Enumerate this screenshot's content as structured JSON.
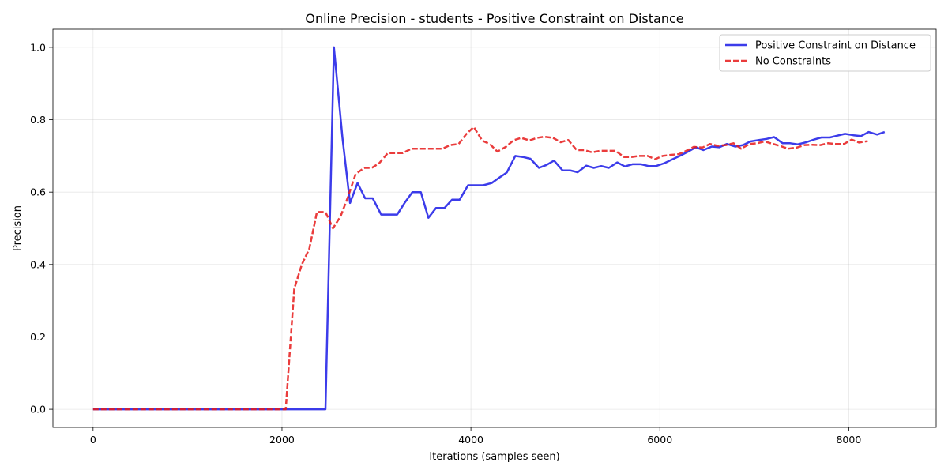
{
  "chart_data": {
    "type": "line",
    "title": "Online Precision - students - Positive Constraint on Distance",
    "xlabel": "Iterations (samples seen)",
    "ylabel": "Precision",
    "xlim": [
      -425,
      8925
    ],
    "ylim": [
      -0.05,
      1.05
    ],
    "xticks": [
      0,
      2000,
      4000,
      6000,
      8000
    ],
    "xtick_labels": [
      "0",
      "2000",
      "4000",
      "6000",
      "8000"
    ],
    "yticks": [
      0.0,
      0.2,
      0.4,
      0.6,
      0.8,
      1.0
    ],
    "ytick_labels": [
      "0.0",
      "0.2",
      "0.4",
      "0.6",
      "0.8",
      "1.0"
    ],
    "grid": true,
    "legend_position": "top-right",
    "series": [
      {
        "name": "Positive Constraint on Distance",
        "color": "#1a1ae6",
        "style": "solid",
        "points": [
          [
            0,
            0
          ],
          [
            2000,
            0
          ],
          [
            2460,
            0
          ],
          [
            2550,
            1.0
          ],
          [
            2640,
            0.75
          ],
          [
            2720,
            0.57
          ],
          [
            2800,
            0.625
          ],
          [
            2880,
            0.583
          ],
          [
            2960,
            0.583
          ],
          [
            3050,
            0.538
          ],
          [
            3140,
            0.538
          ],
          [
            3220,
            0.538
          ],
          [
            3300,
            0.571
          ],
          [
            3380,
            0.6
          ],
          [
            3470,
            0.6
          ],
          [
            3550,
            0.529
          ],
          [
            3630,
            0.556
          ],
          [
            3720,
            0.556
          ],
          [
            3800,
            0.579
          ],
          [
            3880,
            0.579
          ],
          [
            3970,
            0.619
          ],
          [
            4050,
            0.619
          ],
          [
            4130,
            0.619
          ],
          [
            4220,
            0.625
          ],
          [
            4300,
            0.64
          ],
          [
            4380,
            0.654
          ],
          [
            4470,
            0.7
          ],
          [
            4550,
            0.697
          ],
          [
            4630,
            0.692
          ],
          [
            4720,
            0.667
          ],
          [
            4800,
            0.675
          ],
          [
            4880,
            0.687
          ],
          [
            4970,
            0.66
          ],
          [
            5050,
            0.66
          ],
          [
            5130,
            0.655
          ],
          [
            5220,
            0.673
          ],
          [
            5300,
            0.667
          ],
          [
            5380,
            0.672
          ],
          [
            5460,
            0.667
          ],
          [
            5550,
            0.682
          ],
          [
            5630,
            0.671
          ],
          [
            5710,
            0.677
          ],
          [
            5800,
            0.677
          ],
          [
            5880,
            0.672
          ],
          [
            5960,
            0.672
          ],
          [
            6050,
            0.68
          ],
          [
            6130,
            0.69
          ],
          [
            6210,
            0.7
          ],
          [
            6300,
            0.712
          ],
          [
            6380,
            0.724
          ],
          [
            6460,
            0.716
          ],
          [
            6550,
            0.726
          ],
          [
            6630,
            0.724
          ],
          [
            6710,
            0.733
          ],
          [
            6800,
            0.726
          ],
          [
            6880,
            0.73
          ],
          [
            6960,
            0.74
          ],
          [
            7050,
            0.744
          ],
          [
            7130,
            0.747
          ],
          [
            7210,
            0.752
          ],
          [
            7300,
            0.735
          ],
          [
            7380,
            0.735
          ],
          [
            7460,
            0.732
          ],
          [
            7550,
            0.738
          ],
          [
            7630,
            0.745
          ],
          [
            7710,
            0.751
          ],
          [
            7800,
            0.751
          ],
          [
            7880,
            0.756
          ],
          [
            7960,
            0.761
          ],
          [
            8050,
            0.757
          ],
          [
            8130,
            0.755
          ],
          [
            8210,
            0.766
          ],
          [
            8300,
            0.759
          ],
          [
            8380,
            0.766
          ]
        ]
      },
      {
        "name": "No Constraints",
        "color": "#e61a1a",
        "style": "dashed",
        "points": [
          [
            0,
            0
          ],
          [
            1500,
            0
          ],
          [
            2040,
            0
          ],
          [
            2130,
            0.333
          ],
          [
            2210,
            0.4
          ],
          [
            2290,
            0.444
          ],
          [
            2370,
            0.545
          ],
          [
            2460,
            0.545
          ],
          [
            2540,
            0.5
          ],
          [
            2620,
            0.533
          ],
          [
            2700,
            0.588
          ],
          [
            2780,
            0.65
          ],
          [
            2870,
            0.667
          ],
          [
            2950,
            0.667
          ],
          [
            3030,
            0.68
          ],
          [
            3120,
            0.708
          ],
          [
            3200,
            0.708
          ],
          [
            3280,
            0.708
          ],
          [
            3370,
            0.72
          ],
          [
            3450,
            0.72
          ],
          [
            3530,
            0.72
          ],
          [
            3620,
            0.72
          ],
          [
            3700,
            0.72
          ],
          [
            3780,
            0.73
          ],
          [
            3870,
            0.733
          ],
          [
            3950,
            0.76
          ],
          [
            4030,
            0.78
          ],
          [
            4120,
            0.742
          ],
          [
            4200,
            0.733
          ],
          [
            4280,
            0.712
          ],
          [
            4370,
            0.725
          ],
          [
            4450,
            0.743
          ],
          [
            4530,
            0.75
          ],
          [
            4620,
            0.743
          ],
          [
            4700,
            0.75
          ],
          [
            4780,
            0.753
          ],
          [
            4870,
            0.75
          ],
          [
            4950,
            0.738
          ],
          [
            5030,
            0.744
          ],
          [
            5120,
            0.716
          ],
          [
            5200,
            0.716
          ],
          [
            5280,
            0.71
          ],
          [
            5370,
            0.714
          ],
          [
            5450,
            0.714
          ],
          [
            5530,
            0.714
          ],
          [
            5620,
            0.697
          ],
          [
            5700,
            0.697
          ],
          [
            5780,
            0.7
          ],
          [
            5870,
            0.7
          ],
          [
            5950,
            0.691
          ],
          [
            6030,
            0.7
          ],
          [
            6120,
            0.703
          ],
          [
            6200,
            0.705
          ],
          [
            6280,
            0.714
          ],
          [
            6360,
            0.725
          ],
          [
            6450,
            0.723
          ],
          [
            6530,
            0.733
          ],
          [
            6610,
            0.728
          ],
          [
            6700,
            0.73
          ],
          [
            6780,
            0.735
          ],
          [
            6860,
            0.72
          ],
          [
            6950,
            0.733
          ],
          [
            7030,
            0.735
          ],
          [
            7110,
            0.74
          ],
          [
            7200,
            0.733
          ],
          [
            7280,
            0.727
          ],
          [
            7360,
            0.72
          ],
          [
            7450,
            0.723
          ],
          [
            7530,
            0.73
          ],
          [
            7610,
            0.731
          ],
          [
            7700,
            0.73
          ],
          [
            7780,
            0.735
          ],
          [
            7860,
            0.733
          ],
          [
            7950,
            0.733
          ],
          [
            8030,
            0.745
          ],
          [
            8110,
            0.737
          ],
          [
            8200,
            0.741
          ]
        ]
      }
    ]
  }
}
